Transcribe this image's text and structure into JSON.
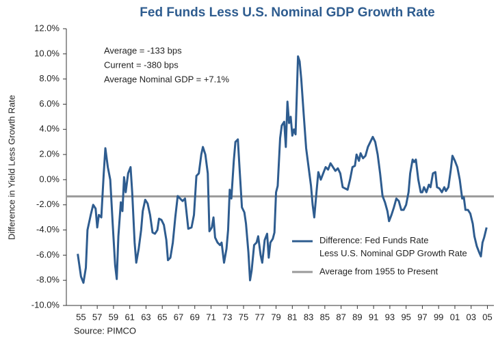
{
  "chart_data": {
    "type": "line",
    "title": "Fed Funds Less U.S. Nominal GDP Growth Rate",
    "y_label": "Difference in Yield Less Growth Rate",
    "source": "Source: PIMCO",
    "annotations": [
      "Average = -133 bps",
      "Current = -380 bps",
      "Average Nominal GDP = +7.1%"
    ],
    "xlim": [
      1953.2,
      2005.8
    ],
    "ylim": [
      -10,
      12
    ],
    "xticks": [
      {
        "value": 1955,
        "label": "55"
      },
      {
        "value": 1957,
        "label": "57"
      },
      {
        "value": 1959,
        "label": "59"
      },
      {
        "value": 1961,
        "label": "61"
      },
      {
        "value": 1963,
        "label": "63"
      },
      {
        "value": 1965,
        "label": "65"
      },
      {
        "value": 1967,
        "label": "67"
      },
      {
        "value": 1969,
        "label": "69"
      },
      {
        "value": 1971,
        "label": "71"
      },
      {
        "value": 1973,
        "label": "73"
      },
      {
        "value": 1975,
        "label": "75"
      },
      {
        "value": 1977,
        "label": "77"
      },
      {
        "value": 1979,
        "label": "79"
      },
      {
        "value": 1981,
        "label": "81"
      },
      {
        "value": 1983,
        "label": "83"
      },
      {
        "value": 1985,
        "label": "85"
      },
      {
        "value": 1987,
        "label": "87"
      },
      {
        "value": 1989,
        "label": "89"
      },
      {
        "value": 1991,
        "label": "91"
      },
      {
        "value": 1993,
        "label": "93"
      },
      {
        "value": 1995,
        "label": "95"
      },
      {
        "value": 1997,
        "label": "97"
      },
      {
        "value": 1999,
        "label": "99"
      },
      {
        "value": 2001,
        "label": "01"
      },
      {
        "value": 2003,
        "label": "03"
      },
      {
        "value": 2005,
        "label": "05"
      }
    ],
    "yticks": [
      {
        "value": 12,
        "label": "12.0%"
      },
      {
        "value": 10,
        "label": "10.0%"
      },
      {
        "value": 8,
        "label": "8.0%"
      },
      {
        "value": 6,
        "label": "6.0%"
      },
      {
        "value": 4,
        "label": "4.0%"
      },
      {
        "value": 2,
        "label": "2.0%"
      },
      {
        "value": 0,
        "label": "0.0%"
      },
      {
        "value": -2,
        "label": "-2.0%"
      },
      {
        "value": -4,
        "label": "-4.0%"
      },
      {
        "value": -6,
        "label": "-6.0%"
      },
      {
        "value": -8,
        "label": "-8.0%"
      },
      {
        "value": -10,
        "label": "-10.0%"
      }
    ],
    "x": [
      1954.6,
      1955.0,
      1955.3,
      1955.6,
      1955.8,
      1956.2,
      1956.5,
      1956.8,
      1957.0,
      1957.2,
      1957.5,
      1957.8,
      1958.0,
      1958.3,
      1958.6,
      1958.9,
      1959.2,
      1959.4,
      1959.6,
      1959.9,
      1960.1,
      1960.3,
      1960.5,
      1960.8,
      1961.1,
      1961.3,
      1961.6,
      1961.8,
      1962.1,
      1962.4,
      1962.6,
      1962.9,
      1963.2,
      1963.5,
      1963.8,
      1964.1,
      1964.4,
      1964.6,
      1964.9,
      1965.2,
      1965.5,
      1965.7,
      1966.0,
      1966.3,
      1966.6,
      1966.9,
      1967.2,
      1967.5,
      1967.8,
      1968.2,
      1968.6,
      1968.9,
      1969.2,
      1969.5,
      1969.8,
      1970.0,
      1970.3,
      1970.6,
      1970.8,
      1971.1,
      1971.3,
      1971.5,
      1971.8,
      1972.1,
      1972.3,
      1972.6,
      1972.9,
      1973.1,
      1973.3,
      1973.5,
      1973.8,
      1974.0,
      1974.3,
      1974.5,
      1974.8,
      1975.1,
      1975.3,
      1975.6,
      1975.8,
      1976.0,
      1976.3,
      1976.6,
      1976.8,
      1977.1,
      1977.3,
      1977.6,
      1977.9,
      1978.1,
      1978.3,
      1978.6,
      1978.8,
      1979.0,
      1979.2,
      1979.5,
      1979.7,
      1980.0,
      1980.2,
      1980.4,
      1980.6,
      1980.8,
      1981.0,
      1981.2,
      1981.4,
      1981.7,
      1981.9,
      1982.1,
      1982.4,
      1982.7,
      1983.0,
      1983.3,
      1983.5,
      1983.7,
      1984.0,
      1984.2,
      1984.5,
      1984.8,
      1985.1,
      1985.4,
      1985.7,
      1986.0,
      1986.3,
      1986.6,
      1986.9,
      1987.2,
      1987.5,
      1987.8,
      1988.1,
      1988.4,
      1988.7,
      1988.9,
      1989.2,
      1989.4,
      1989.7,
      1990.0,
      1990.3,
      1990.6,
      1990.9,
      1991.2,
      1991.5,
      1991.8,
      1992.1,
      1992.4,
      1992.7,
      1992.9,
      1993.2,
      1993.5,
      1993.8,
      1994.1,
      1994.4,
      1994.7,
      1995.0,
      1995.3,
      1995.5,
      1995.8,
      1996.0,
      1996.2,
      1996.5,
      1996.8,
      1997.0,
      1997.2,
      1997.5,
      1997.8,
      1998.0,
      1998.3,
      1998.6,
      1998.8,
      1999.1,
      1999.4,
      1999.7,
      1999.9,
      2000.2,
      2000.5,
      2000.7,
      2001.0,
      2001.3,
      2001.6,
      2001.9,
      2002.1,
      2002.3,
      2002.6,
      2002.9,
      2003.2,
      2003.4,
      2003.7,
      2004.0,
      2004.2,
      2004.4,
      2004.6,
      2004.9
    ],
    "series": [
      {
        "name": "Difference: Fed Funds Rate Less U.S. Nominal GDP Growth Rate",
        "color": "#2e5c8f",
        "values": [
          -5.9,
          -7.7,
          -8.2,
          -7.0,
          -4.0,
          -2.8,
          -2.0,
          -2.3,
          -3.8,
          -2.8,
          -3.0,
          0.5,
          2.5,
          1.0,
          0.0,
          -3.5,
          -6.8,
          -7.9,
          -4.5,
          -1.8,
          -2.5,
          0.2,
          -1.0,
          0.5,
          1.0,
          -1.0,
          -5.0,
          -6.6,
          -5.5,
          -4.0,
          -2.5,
          -1.6,
          -1.9,
          -2.8,
          -4.2,
          -4.3,
          -4.0,
          -3.1,
          -3.2,
          -3.6,
          -4.8,
          -6.4,
          -6.2,
          -5.0,
          -3.0,
          -1.3,
          -1.5,
          -1.7,
          -1.5,
          -3.9,
          -3.8,
          -2.8,
          0.3,
          0.5,
          2.0,
          2.6,
          2.0,
          0.5,
          -4.1,
          -3.8,
          -3.0,
          -4.6,
          -5.0,
          -5.2,
          -5.0,
          -6.6,
          -5.5,
          -4.0,
          -0.8,
          -1.5,
          1.5,
          3.0,
          3.2,
          1.0,
          -2.2,
          -2.6,
          -3.5,
          -5.8,
          -8.0,
          -7.2,
          -5.2,
          -5.0,
          -4.5,
          -6.0,
          -6.6,
          -4.8,
          -4.3,
          -6.2,
          -5.0,
          -4.7,
          -4.2,
          -1.0,
          -0.5,
          3.3,
          4.3,
          4.6,
          2.6,
          6.2,
          4.5,
          5.0,
          3.5,
          4.0,
          3.6,
          9.8,
          9.4,
          8.0,
          5.2,
          2.5,
          1.0,
          -0.5,
          -2.0,
          -3.0,
          -0.8,
          0.6,
          0.0,
          0.5,
          1.0,
          0.8,
          1.3,
          1.0,
          0.7,
          0.9,
          0.5,
          -0.6,
          -0.7,
          -0.8,
          0.0,
          1.0,
          1.1,
          2.0,
          1.5,
          2.1,
          1.7,
          1.9,
          2.6,
          3.0,
          3.4,
          3.0,
          2.0,
          0.5,
          -1.3,
          -1.8,
          -2.5,
          -3.3,
          -2.8,
          -2.2,
          -1.5,
          -1.7,
          -2.4,
          -2.4,
          -2.0,
          -1.0,
          0.5,
          1.6,
          1.4,
          1.6,
          0.0,
          -1.0,
          -1.0,
          -0.6,
          -1.0,
          -0.4,
          -0.6,
          0.5,
          0.6,
          -0.6,
          -0.7,
          -1.0,
          -0.6,
          -0.9,
          -0.6,
          0.8,
          1.9,
          1.5,
          1.0,
          0.0,
          -1.5,
          -1.4,
          -2.4,
          -2.4,
          -2.7,
          -3.5,
          -4.5,
          -5.3,
          -5.8,
          -6.1,
          -5.0,
          -4.6,
          -3.8
        ]
      }
    ],
    "average_line": {
      "name": "Average from 1955 to Present",
      "color": "#999999",
      "value": -1.33
    }
  }
}
